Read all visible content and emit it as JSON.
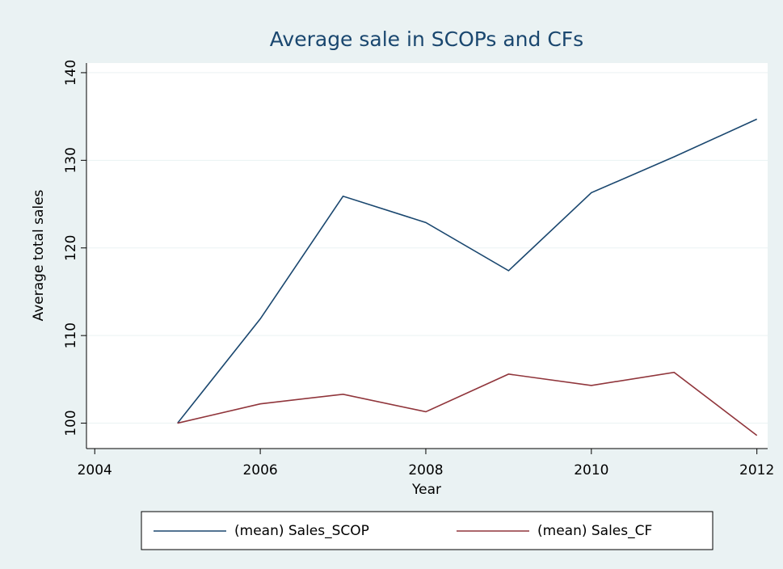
{
  "chart_data": {
    "type": "line",
    "title": "Average sale in SCOPs and CFs",
    "xlabel": "Year",
    "ylabel": "Average total sales",
    "x": [
      2005,
      2006,
      2007,
      2008,
      2009,
      2010,
      2011,
      2012
    ],
    "series": [
      {
        "name": "(mean) Sales_SCOP",
        "color": "#1a476f",
        "values": [
          100,
          111.9,
          125.9,
          122.9,
          117.4,
          126.3,
          130.4,
          134.7
        ]
      },
      {
        "name": "(mean) Sales_CF",
        "color": "#90353b",
        "values": [
          100,
          102.2,
          103.3,
          101.3,
          105.6,
          104.3,
          105.8,
          98.6
        ]
      }
    ],
    "xlim": [
      2003.9,
      2012.13
    ],
    "xticks": [
      2004,
      2006,
      2008,
      2010,
      2012
    ],
    "ylim": [
      97.1,
      141.1
    ],
    "yticks": [
      100,
      110,
      120,
      130,
      140
    ],
    "grid": true,
    "legend": "bottom"
  }
}
